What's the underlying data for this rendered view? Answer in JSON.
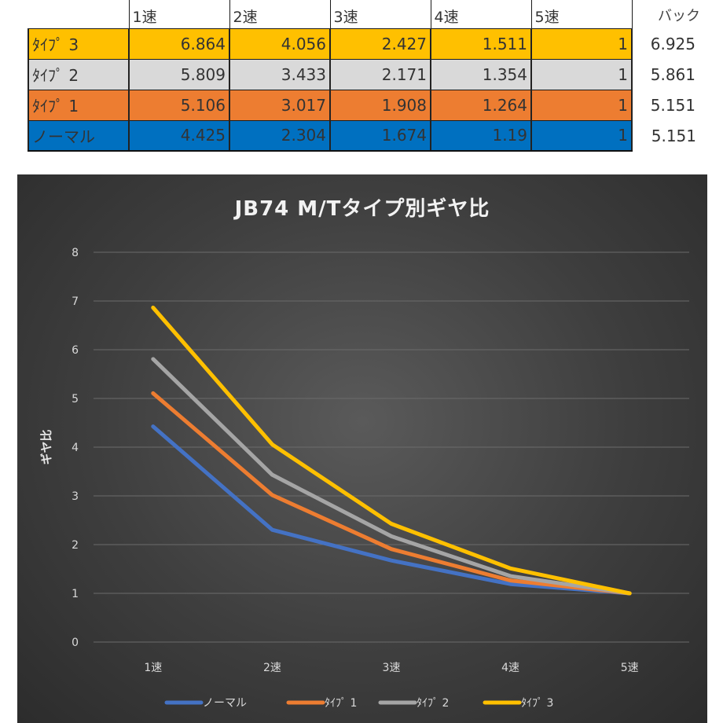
{
  "table": {
    "headers": [
      "",
      "1速",
      "2速",
      "3速",
      "4速",
      "5速"
    ],
    "back_header": "バック",
    "rows": [
      {
        "label": "ﾀｲﾌﾟ 3",
        "values": [
          "6.864",
          "4.056",
          "2.427",
          "1.511",
          "1"
        ],
        "back": "6.925",
        "color": "#ffc000"
      },
      {
        "label": "ﾀｲﾌﾟ 2",
        "values": [
          "5.809",
          "3.433",
          "2.171",
          "1.354",
          "1"
        ],
        "back": "5.861",
        "color": "#d9d9d9"
      },
      {
        "label": "ﾀｲﾌﾟ 1",
        "values": [
          "5.106",
          "3.017",
          "1.908",
          "1.264",
          "1"
        ],
        "back": "5.151",
        "color": "#ed7d31"
      },
      {
        "label": "ノーマル",
        "values": [
          "4.425",
          "2.304",
          "1.674",
          "1.19",
          "1"
        ],
        "back": "5.151",
        "color": "#0070c0"
      }
    ]
  },
  "chart_data": {
    "type": "line",
    "title": "JB74  M/Tタイプ別ギヤ比",
    "xlabel": "",
    "ylabel": "ギヤ比",
    "categories": [
      "1速",
      "2速",
      "3速",
      "4速",
      "5速"
    ],
    "ylim": [
      0,
      8
    ],
    "yticks": [
      "0",
      "1",
      "2",
      "3",
      "4",
      "5",
      "6",
      "7",
      "8"
    ],
    "grid": true,
    "legend_position": "bottom",
    "series": [
      {
        "name": "ノーマル",
        "values": [
          4.425,
          2.304,
          1.674,
          1.19,
          1
        ],
        "color": "#4472c4"
      },
      {
        "name": "ﾀｲﾌﾟ 1",
        "values": [
          5.106,
          3.017,
          1.908,
          1.264,
          1
        ],
        "color": "#ed7d31"
      },
      {
        "name": "ﾀｲﾌﾟ 2",
        "values": [
          5.809,
          3.433,
          2.171,
          1.354,
          1
        ],
        "color": "#a5a5a5"
      },
      {
        "name": "ﾀｲﾌﾟ 3",
        "values": [
          6.864,
          4.056,
          2.427,
          1.511,
          1
        ],
        "color": "#ffc000"
      }
    ]
  }
}
